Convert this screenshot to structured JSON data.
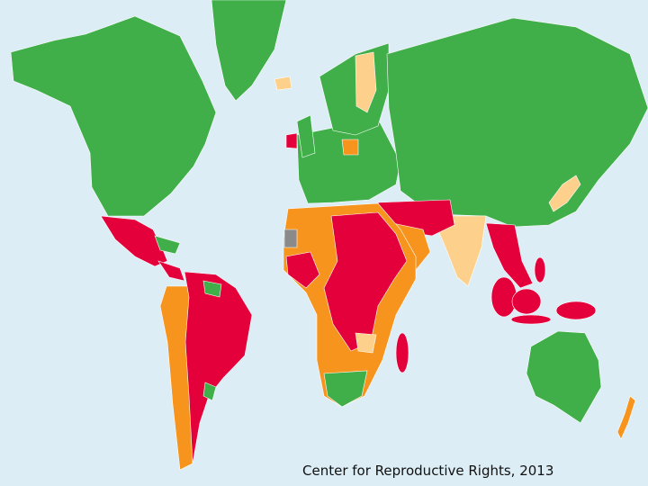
{
  "map": {
    "source": "Center for Reproductive Rights, 2013"
  }
}
